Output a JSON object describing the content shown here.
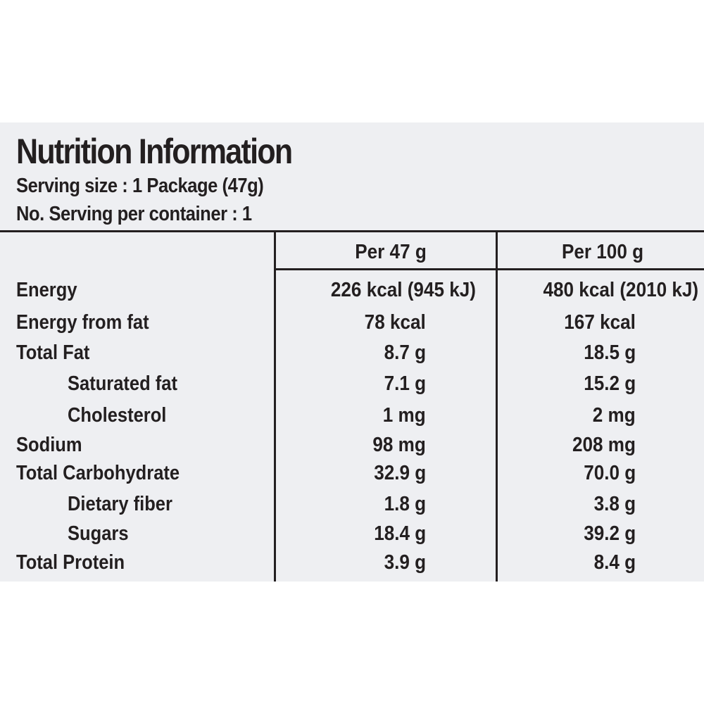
{
  "title": "Nutrition Information",
  "serving_size": "Serving size : 1 Package (47g)",
  "servings_per_container": "No. Serving per container : 1",
  "columns": [
    "Per 47 g",
    "Per 100 g"
  ],
  "rows": [
    {
      "label": "Energy",
      "per_serving": "226 kcal (945 kJ)",
      "per_100g": "480 kcal (2010 kJ)"
    },
    {
      "label": "Energy from fat",
      "per_serving": "78 kcal",
      "per_100g": "167 kcal"
    },
    {
      "label": "Total Fat",
      "per_serving": "8.7 g",
      "per_100g": "18.5 g"
    },
    {
      "label": "Saturated fat",
      "per_serving": "7.1 g",
      "per_100g": "15.2 g"
    },
    {
      "label": "Cholesterol",
      "per_serving": "1 mg",
      "per_100g": "2 mg"
    },
    {
      "label": "Sodium",
      "per_serving": "98 mg",
      "per_100g": "208 mg"
    },
    {
      "label": "Total Carbohydrate",
      "per_serving": "32.9 g",
      "per_100g": "70.0 g"
    },
    {
      "label": "Dietary fiber",
      "per_serving": "1.8 g",
      "per_100g": "3.8 g"
    },
    {
      "label": "Sugars",
      "per_serving": "18.4 g",
      "per_100g": "39.2 g"
    },
    {
      "label": "Total Protein",
      "per_serving": "3.9 g",
      "per_100g": "8.4 g"
    }
  ]
}
